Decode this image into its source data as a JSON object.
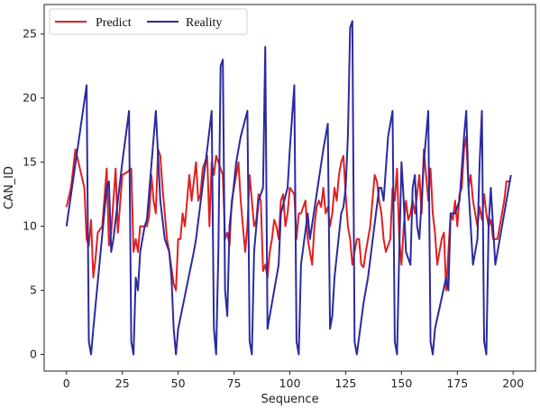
{
  "chart_data": {
    "type": "line",
    "title": "",
    "xlabel": "Sequence",
    "ylabel": "CAN_ID",
    "xlim": [
      -10,
      210
    ],
    "ylim": [
      -1.3,
      27.3
    ],
    "xticks": [
      0,
      25,
      50,
      75,
      100,
      125,
      150,
      175,
      200
    ],
    "yticks": [
      0,
      5,
      10,
      15,
      20,
      25
    ],
    "grid": false,
    "legend": {
      "position": "top-left",
      "columns": 2
    },
    "series": [
      {
        "name": "Predict",
        "color": "#e02020",
        "points": [
          [
            0,
            11.5
          ],
          [
            2,
            13
          ],
          [
            4,
            16
          ],
          [
            6,
            14.5
          ],
          [
            8,
            13
          ],
          [
            9,
            9
          ],
          [
            10,
            8.5
          ],
          [
            11,
            10.5
          ],
          [
            12,
            6
          ],
          [
            13,
            7.5
          ],
          [
            14,
            9.5
          ],
          [
            16,
            10
          ],
          [
            18,
            14.5
          ],
          [
            19,
            8.5
          ],
          [
            20,
            9.5
          ],
          [
            22,
            14.5
          ],
          [
            23,
            9.5
          ],
          [
            25,
            14
          ],
          [
            27,
            14.2
          ],
          [
            29,
            14.5
          ],
          [
            30,
            8
          ],
          [
            31,
            9
          ],
          [
            32,
            8
          ],
          [
            33,
            10
          ],
          [
            36,
            10
          ],
          [
            37,
            10.8
          ],
          [
            38,
            14
          ],
          [
            39,
            12
          ],
          [
            40,
            11
          ],
          [
            41,
            16
          ],
          [
            42,
            15.5
          ],
          [
            43,
            13
          ],
          [
            44,
            11
          ],
          [
            45,
            9
          ],
          [
            46,
            8
          ],
          [
            48,
            5.5
          ],
          [
            49,
            5
          ],
          [
            50,
            9
          ],
          [
            51,
            9
          ],
          [
            52,
            11
          ],
          [
            53,
            10
          ],
          [
            55,
            14
          ],
          [
            56,
            12
          ],
          [
            58,
            15
          ],
          [
            59,
            12
          ],
          [
            60,
            12.5
          ],
          [
            61,
            14.5
          ],
          [
            63,
            15.5
          ],
          [
            64,
            10
          ],
          [
            65,
            15
          ],
          [
            66,
            14
          ],
          [
            67,
            15.5
          ],
          [
            68,
            15
          ],
          [
            70,
            14
          ],
          [
            71,
            9
          ],
          [
            72,
            9.5
          ],
          [
            73,
            8.5
          ],
          [
            74,
            12
          ],
          [
            76,
            14
          ],
          [
            77,
            15
          ],
          [
            78,
            12
          ],
          [
            80,
            8
          ],
          [
            81,
            10
          ],
          [
            82,
            14
          ],
          [
            83,
            12
          ],
          [
            84,
            10
          ],
          [
            85,
            10.5
          ],
          [
            86,
            12.5
          ],
          [
            87,
            12
          ],
          [
            88,
            6.5
          ],
          [
            89,
            7
          ],
          [
            90,
            6
          ],
          [
            91,
            8
          ],
          [
            92,
            9
          ],
          [
            93,
            10.5
          ],
          [
            94,
            10
          ],
          [
            95,
            9
          ],
          [
            96,
            12
          ],
          [
            97,
            12.5
          ],
          [
            98,
            10
          ],
          [
            99,
            11
          ],
          [
            100,
            13
          ],
          [
            102,
            12.5
          ],
          [
            103,
            9
          ],
          [
            104,
            11
          ],
          [
            105,
            11
          ],
          [
            107,
            12
          ],
          [
            108,
            9
          ],
          [
            110,
            7
          ],
          [
            111,
            10
          ],
          [
            112,
            11.5
          ],
          [
            113,
            12
          ],
          [
            114,
            11.5
          ],
          [
            115,
            13
          ],
          [
            116,
            11
          ],
          [
            117,
            11.5
          ],
          [
            118,
            10
          ],
          [
            119,
            11
          ],
          [
            120,
            13
          ],
          [
            121,
            12
          ],
          [
            122,
            14
          ],
          [
            123,
            15
          ],
          [
            124,
            15.5
          ],
          [
            125,
            12.5
          ],
          [
            126,
            10
          ],
          [
            127,
            9
          ],
          [
            128,
            7
          ],
          [
            129,
            8
          ],
          [
            130,
            9
          ],
          [
            131,
            9
          ],
          [
            132,
            7
          ],
          [
            133,
            6.8
          ],
          [
            134,
            8
          ],
          [
            135,
            9
          ],
          [
            136,
            10
          ],
          [
            137,
            12
          ],
          [
            138,
            14
          ],
          [
            139,
            13.5
          ],
          [
            140,
            12
          ],
          [
            141,
            11
          ],
          [
            142,
            9
          ],
          [
            143,
            8
          ],
          [
            145,
            9
          ],
          [
            146,
            13
          ],
          [
            147,
            12
          ],
          [
            148,
            14.5
          ],
          [
            149,
            9
          ],
          [
            150,
            7
          ],
          [
            151,
            10
          ],
          [
            152,
            12
          ],
          [
            153,
            10.5
          ],
          [
            154,
            11
          ],
          [
            155,
            12
          ],
          [
            156,
            11
          ],
          [
            157,
            12.5
          ],
          [
            158,
            14
          ],
          [
            159,
            11
          ],
          [
            160,
            16
          ],
          [
            161,
            14
          ],
          [
            162,
            12
          ],
          [
            163,
            14.5
          ],
          [
            164,
            11
          ],
          [
            165,
            9.5
          ],
          [
            166,
            7
          ],
          [
            167,
            8
          ],
          [
            168,
            9
          ],
          [
            169,
            9.5
          ],
          [
            170,
            5
          ],
          [
            171,
            8
          ],
          [
            172,
            11
          ],
          [
            173,
            10.5
          ],
          [
            174,
            12
          ],
          [
            175,
            10
          ],
          [
            176,
            12.5
          ],
          [
            177,
            13
          ],
          [
            178,
            16
          ],
          [
            179,
            17
          ],
          [
            180,
            13
          ],
          [
            181,
            14
          ],
          [
            182,
            12
          ],
          [
            183,
            11
          ],
          [
            184,
            10
          ],
          [
            185,
            11.5
          ],
          [
            186,
            10.5
          ],
          [
            187,
            12.5
          ],
          [
            188,
            11
          ],
          [
            189,
            10
          ],
          [
            190,
            10.5
          ],
          [
            191,
            9
          ],
          [
            193,
            9
          ],
          [
            194,
            10
          ],
          [
            195,
            11
          ],
          [
            196,
            12
          ],
          [
            197,
            13.5
          ],
          [
            198,
            13.5
          ],
          [
            199,
            13.5
          ]
        ]
      },
      {
        "name": "Reality",
        "color": "#2a2aa0",
        "points": [
          [
            0,
            10
          ],
          [
            9,
            21
          ],
          [
            10,
            1
          ],
          [
            11,
            0
          ],
          [
            12,
            2
          ],
          [
            18,
            13
          ],
          [
            19,
            13.5
          ],
          [
            20,
            8
          ],
          [
            21,
            9
          ],
          [
            25,
            15
          ],
          [
            28,
            19
          ],
          [
            29,
            1
          ],
          [
            30,
            0
          ],
          [
            31,
            6
          ],
          [
            32,
            5
          ],
          [
            33,
            8
          ],
          [
            35,
            10
          ],
          [
            36,
            10.5
          ],
          [
            40,
            19
          ],
          [
            42,
            12
          ],
          [
            44,
            9
          ],
          [
            46,
            8
          ],
          [
            47,
            6
          ],
          [
            48,
            2
          ],
          [
            49,
            0
          ],
          [
            50,
            2
          ],
          [
            57,
            8
          ],
          [
            58,
            9
          ],
          [
            63,
            16
          ],
          [
            65,
            19
          ],
          [
            66,
            2
          ],
          [
            67,
            0
          ],
          [
            68,
            8
          ],
          [
            69,
            22.5
          ],
          [
            70,
            23
          ],
          [
            71,
            5
          ],
          [
            72,
            3
          ],
          [
            73,
            10
          ],
          [
            76,
            15
          ],
          [
            78,
            17
          ],
          [
            81,
            19
          ],
          [
            82,
            1
          ],
          [
            83,
            0
          ],
          [
            84,
            8
          ],
          [
            86,
            12
          ],
          [
            88,
            13
          ],
          [
            89,
            24
          ],
          [
            90,
            2
          ],
          [
            91,
            3
          ],
          [
            95,
            7
          ],
          [
            96,
            11
          ],
          [
            99,
            13
          ],
          [
            100,
            16
          ],
          [
            102,
            21
          ],
          [
            103,
            1
          ],
          [
            104,
            0
          ],
          [
            105,
            7
          ],
          [
            108,
            11
          ],
          [
            109,
            9
          ],
          [
            115,
            16
          ],
          [
            117,
            18
          ],
          [
            118,
            2
          ],
          [
            119,
            3
          ],
          [
            120,
            6
          ],
          [
            123,
            11
          ],
          [
            124,
            11.5
          ],
          [
            125,
            13
          ],
          [
            126,
            17
          ],
          [
            127,
            25.5
          ],
          [
            128,
            26
          ],
          [
            129,
            1
          ],
          [
            130,
            0
          ],
          [
            133,
            4
          ],
          [
            135,
            6
          ],
          [
            140,
            13
          ],
          [
            141,
            13
          ],
          [
            142,
            12
          ],
          [
            144,
            17
          ],
          [
            146,
            19
          ],
          [
            147,
            1
          ],
          [
            148,
            0
          ],
          [
            149,
            8
          ],
          [
            150,
            15
          ],
          [
            151,
            12
          ],
          [
            152,
            8
          ],
          [
            154,
            7
          ],
          [
            155,
            13
          ],
          [
            156,
            14
          ],
          [
            157,
            10
          ],
          [
            158,
            9
          ],
          [
            160,
            15
          ],
          [
            162,
            19
          ],
          [
            163,
            1
          ],
          [
            164,
            0
          ],
          [
            165,
            2
          ],
          [
            170,
            6
          ],
          [
            171,
            5
          ],
          [
            172,
            11
          ],
          [
            174,
            11
          ],
          [
            176,
            12
          ],
          [
            178,
            17
          ],
          [
            179,
            19
          ],
          [
            180,
            13
          ],
          [
            182,
            7
          ],
          [
            184,
            9
          ],
          [
            185,
            15
          ],
          [
            186,
            19
          ],
          [
            187,
            1
          ],
          [
            188,
            0
          ],
          [
            189,
            10
          ],
          [
            190,
            13
          ],
          [
            191,
            10
          ],
          [
            192,
            7
          ],
          [
            193,
            8
          ],
          [
            196,
            11
          ],
          [
            197,
            12
          ],
          [
            199,
            14
          ]
        ]
      }
    ]
  }
}
